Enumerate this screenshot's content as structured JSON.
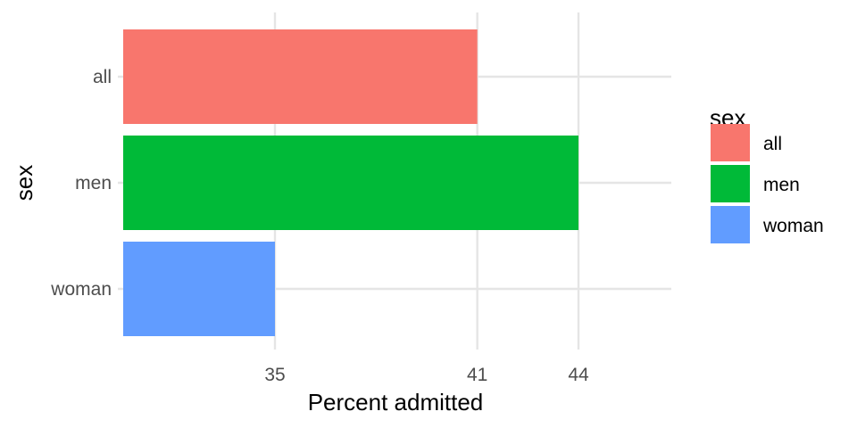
{
  "chart_data": {
    "type": "bar",
    "orientation": "horizontal",
    "categories": [
      "all",
      "men",
      "woman"
    ],
    "values": [
      41,
      44,
      35
    ],
    "colors": [
      "#F8766D",
      "#00BA38",
      "#619CFF"
    ],
    "xlabel": "Percent admitted",
    "ylabel": "sex",
    "xticks": [
      "35",
      "41",
      "44"
    ],
    "grid": true,
    "legend": {
      "title": "sex",
      "position": "right",
      "entries": [
        "all",
        "men",
        "woman"
      ]
    }
  }
}
